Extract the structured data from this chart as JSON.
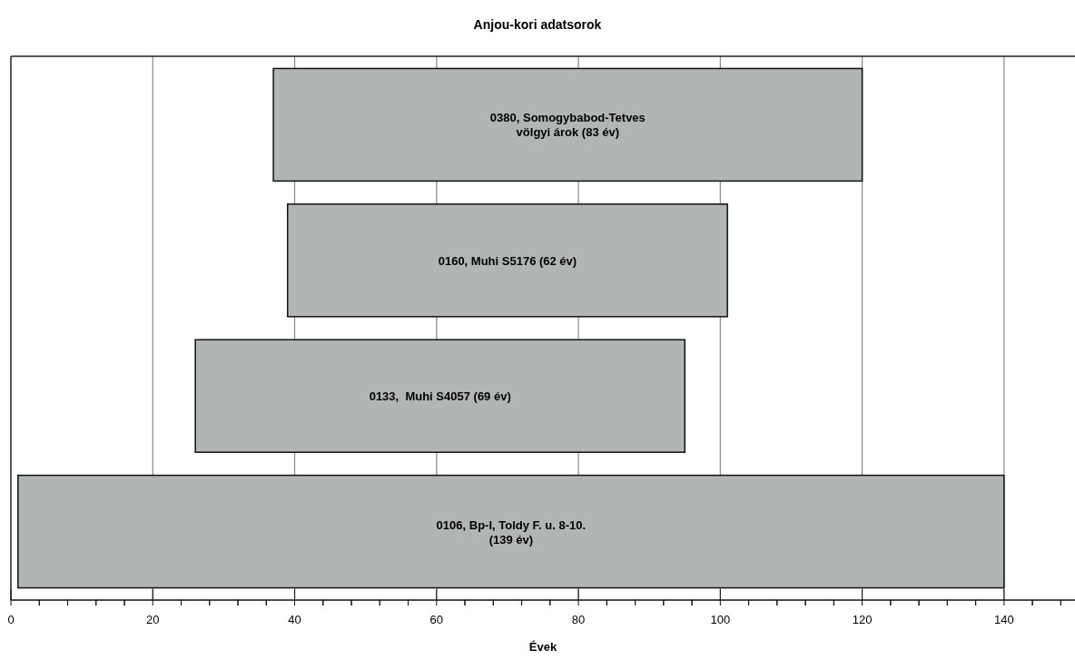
{
  "chart_data": {
    "type": "bar",
    "orientation": "horizontal",
    "title": "Anjou-kori adatsorok",
    "xlabel": "Évek",
    "categories": [
      "0380, Somogybabod-Tetves\nvölgyi árok (83 év)",
      "0160, Muhi S5176 (62 év)",
      "0133,  Muhi S4057 (69 év)",
      "0106, Bp-I, Toldy F. u. 8-10.\n(139 év)"
    ],
    "base": [
      37,
      39,
      26,
      1
    ],
    "values": [
      83,
      62,
      69,
      139
    ],
    "color": "#b2b5b6",
    "xlim": [
      0,
      150
    ],
    "xticks": [
      0,
      {
        "value": 4,
        "label": null
      },
      {
        "value": 8,
        "label": null
      },
      {
        "value": 12,
        "label": null
      },
      {
        "value": 16,
        "label": null
      },
      20,
      {
        "value": 24,
        "label": null
      },
      {
        "value": 28,
        "label": null
      },
      {
        "value": 32,
        "label": null
      },
      {
        "value": 36,
        "label": null
      },
      40,
      {
        "value": 44,
        "label": null
      },
      {
        "value": 48,
        "label": null
      },
      {
        "value": 52,
        "label": null
      },
      {
        "value": 56,
        "label": null
      },
      60,
      {
        "value": 64,
        "label": null
      },
      {
        "value": 68,
        "label": null
      },
      {
        "value": 72,
        "label": null
      },
      {
        "value": 76,
        "label": null
      },
      80,
      {
        "value": 84,
        "label": null
      },
      {
        "value": 88,
        "label": null
      },
      {
        "value": 92,
        "label": null
      },
      {
        "value": 96,
        "label": null
      },
      100,
      {
        "value": 104,
        "label": null
      },
      {
        "value": 108,
        "label": null
      },
      {
        "value": 112,
        "label": null
      },
      {
        "value": 116,
        "label": null
      },
      120,
      {
        "value": 124,
        "label": null
      },
      {
        "value": 128,
        "label": null
      },
      {
        "value": 132,
        "label": null
      },
      {
        "value": 136,
        "label": null
      },
      140,
      {
        "value": 144,
        "label": null
      },
      {
        "value": 148,
        "label": null
      }
    ],
    "grid": "x",
    "tick_labels": "x"
  }
}
